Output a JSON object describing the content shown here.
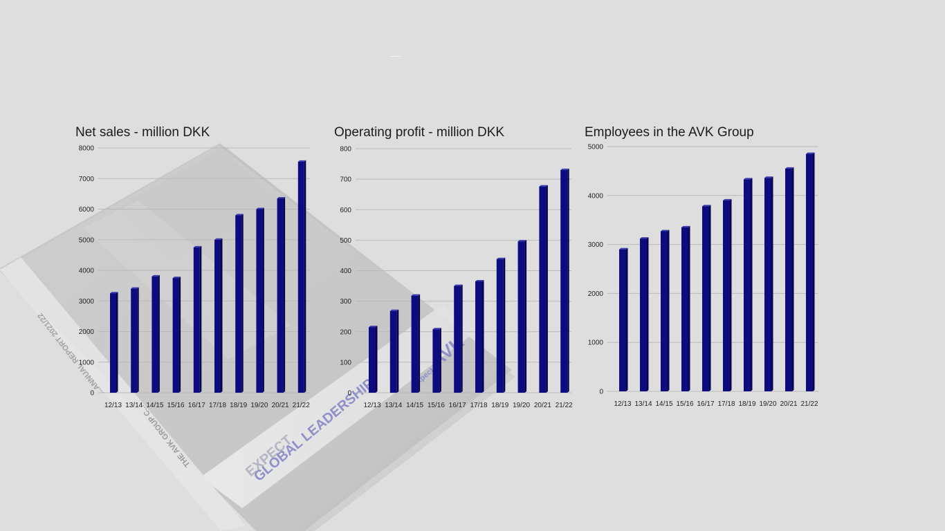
{
  "colors": {
    "bar": "#0c0c80",
    "bar_side": "#05054a",
    "bar_top": "#3a3ab0",
    "grid": "#b9b9b9",
    "background": "#dedede"
  },
  "brochure": {
    "headline_1": "EXPECT",
    "headline_2": "GLOBAL LEADERSHIP",
    "report_line": "ANNUAL REPORT 2021/22",
    "group_line": "THE AVK GROUP CONSOLIDATED",
    "logo_text": "AVK",
    "logo_prefix": "Expect...",
    "spine_1": "THE AVK GROUP C...",
    "spine_2": "...ANNUAL REPORT 2021/22"
  },
  "chart_data": [
    {
      "type": "bar",
      "title": "Net sales - million DKK",
      "categories": [
        "12/13",
        "13/14",
        "14/15",
        "15/16",
        "16/17",
        "17/18",
        "18/19",
        "19/20",
        "20/21",
        "21/22"
      ],
      "values": [
        3250,
        3400,
        3800,
        3750,
        4750,
        5000,
        5800,
        6000,
        6350,
        7550
      ],
      "ylim": [
        0,
        8000
      ],
      "yticks": [
        0,
        1000,
        2000,
        3000,
        4000,
        5000,
        6000,
        7000,
        8000
      ],
      "grid": true
    },
    {
      "type": "bar",
      "title": "Operating profit - million DKK",
      "categories": [
        "12/13",
        "13/14",
        "14/15",
        "15/16",
        "16/17",
        "17/18",
        "18/19",
        "19/20",
        "20/21",
        "21/22"
      ],
      "values": [
        215,
        268,
        318,
        208,
        350,
        365,
        438,
        496,
        676,
        730
      ],
      "ylim": [
        0,
        800
      ],
      "yticks": [
        0,
        100,
        200,
        300,
        400,
        500,
        600,
        700,
        800
      ],
      "grid": true
    },
    {
      "type": "bar",
      "title": "Employees in the AVK Group",
      "categories": [
        "12/13",
        "13/14",
        "14/15",
        "15/16",
        "16/17",
        "17/18",
        "18/19",
        "19/20",
        "20/21",
        "21/22"
      ],
      "values": [
        2900,
        3120,
        3270,
        3350,
        3780,
        3900,
        4330,
        4360,
        4550,
        4850
      ],
      "ylim": [
        0,
        5000
      ],
      "yticks": [
        0,
        1000,
        2000,
        3000,
        4000,
        5000
      ],
      "grid": true
    }
  ]
}
